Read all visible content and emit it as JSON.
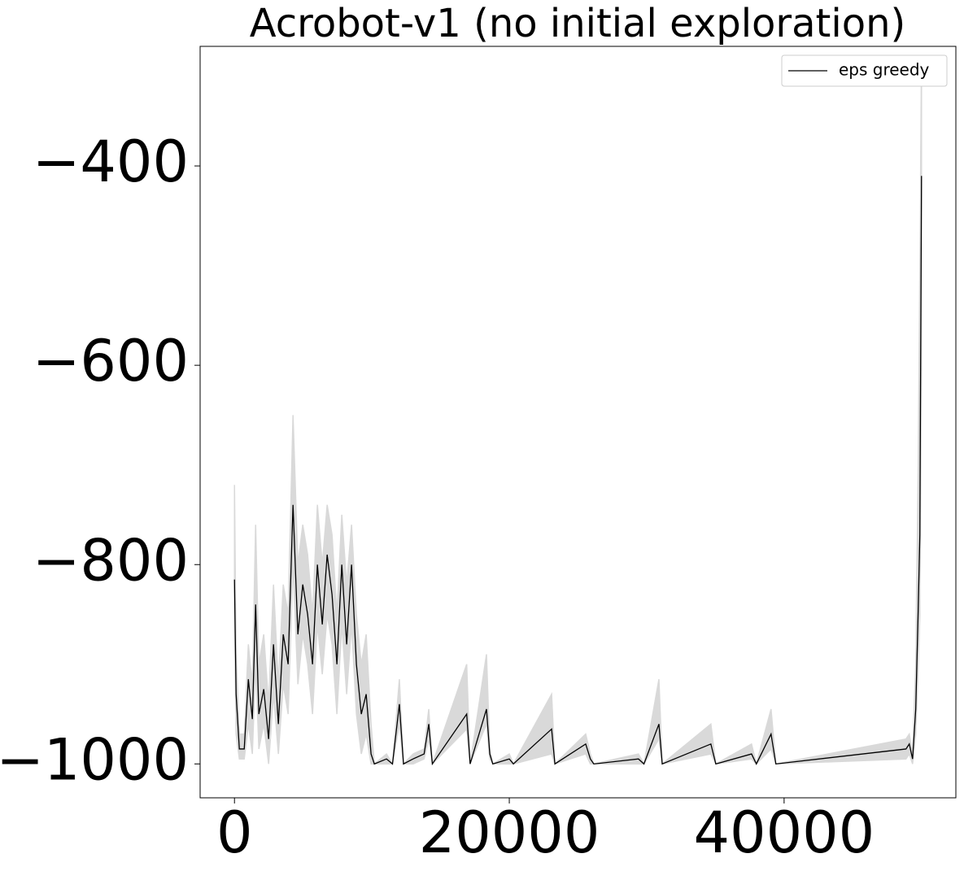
{
  "chart_data": {
    "type": "line",
    "title": "Acrobot-v1 (no initial exploration)",
    "x": [
      0,
      118,
      355,
      710,
      1010,
      1300,
      1540,
      1775,
      2130,
      2485,
      2840,
      3195,
      3550,
      3905,
      4260,
      4615,
      4970,
      5325,
      5680,
      6035,
      6390,
      6745,
      7100,
      7455,
      7810,
      8165,
      8520,
      8875,
      9230,
      9585,
      9940,
      10180,
      11065,
      11500,
      12000,
      12300,
      13000,
      13800,
      14140,
      14400,
      16900,
      17150,
      18340,
      18580,
      18800,
      20000,
      20300,
      23080,
      23320,
      25560,
      25900,
      26150,
      29400,
      29800,
      30890,
      31130,
      34670,
      35030,
      37630,
      37980,
      39050,
      39400,
      48870,
      49110,
      49350,
      49580,
      49760,
      49880,
      50000
    ],
    "series": [
      {
        "name": "eps greedy",
        "color": "#000000",
        "band_color": "#d9d9d9",
        "values": [
          -815,
          -930,
          -985,
          -985,
          -915,
          -955,
          -840,
          -950,
          -925,
          -975,
          -880,
          -960,
          -870,
          -900,
          -740,
          -870,
          -820,
          -850,
          -900,
          -800,
          -860,
          -790,
          -830,
          -900,
          -800,
          -880,
          -800,
          -900,
          -950,
          -930,
          -990,
          -1000,
          -995,
          -1000,
          -940,
          -1000,
          -995,
          -990,
          -960,
          -1000,
          -950,
          -1000,
          -945,
          -990,
          -1000,
          -995,
          -1000,
          -965,
          -1000,
          -980,
          -995,
          -1000,
          -995,
          -1000,
          -960,
          -1000,
          -980,
          -1000,
          -990,
          -1000,
          -970,
          -1000,
          -985,
          -980,
          -995,
          -945,
          -845,
          -770,
          -410
        ],
        "upper": [
          -720,
          -890,
          -970,
          -970,
          -880,
          -920,
          -760,
          -900,
          -870,
          -940,
          -820,
          -920,
          -820,
          -850,
          -650,
          -800,
          -760,
          -790,
          -850,
          -740,
          -800,
          -740,
          -770,
          -850,
          -750,
          -820,
          -760,
          -850,
          -900,
          -870,
          -960,
          -1000,
          -990,
          -1000,
          -915,
          -1000,
          -990,
          -985,
          -945,
          -1000,
          -900,
          -1000,
          -890,
          -985,
          -1000,
          -990,
          -1000,
          -930,
          -1000,
          -970,
          -990,
          -1000,
          -990,
          -1000,
          -915,
          -1000,
          -960,
          -1000,
          -980,
          -1000,
          -945,
          -1000,
          -975,
          -970,
          -990,
          -900,
          -700,
          -500,
          -290
        ],
        "lower": [
          -860,
          -970,
          -995,
          -995,
          -960,
          -990,
          -900,
          -985,
          -960,
          -1000,
          -930,
          -990,
          -920,
          -950,
          -800,
          -920,
          -870,
          -900,
          -950,
          -860,
          -910,
          -850,
          -880,
          -950,
          -860,
          -930,
          -860,
          -950,
          -990,
          -970,
          -1000,
          -1000,
          -1000,
          -1000,
          -960,
          -1000,
          -1000,
          -995,
          -975,
          -1000,
          -965,
          -1000,
          -960,
          -995,
          -1000,
          -1000,
          -1000,
          -990,
          -1000,
          -990,
          -1000,
          -1000,
          -1000,
          -1000,
          -975,
          -1000,
          -990,
          -1000,
          -995,
          -1000,
          -985,
          -1000,
          -995,
          -990,
          -1000,
          -970,
          -900,
          -850,
          -600
        ]
      }
    ],
    "xlim": [
      -2500,
      52500
    ],
    "ylim": [
      -1034,
      -280
    ],
    "xticks": [
      0,
      20000,
      40000
    ],
    "yticks": [
      {
        "value": -400,
        "label": "−400"
      },
      {
        "value": -600,
        "label": "−600"
      },
      {
        "value": -800,
        "label": "−800"
      },
      {
        "value": -1000,
        "label": "−1000"
      }
    ],
    "legend": "upper right"
  }
}
